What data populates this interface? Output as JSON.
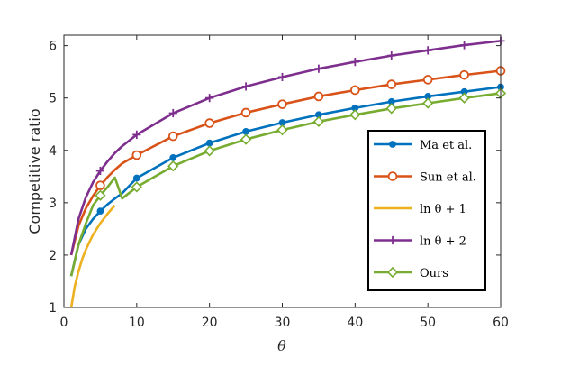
{
  "chart_data": {
    "type": "line",
    "title": "",
    "xlabel": "θ",
    "ylabel": "Competitive ratio",
    "xlim": [
      0,
      60
    ],
    "ylim": [
      1,
      6.2
    ],
    "xticks": [
      0,
      10,
      20,
      30,
      40,
      50,
      60
    ],
    "yticks": [
      1,
      2,
      3,
      4,
      5,
      6
    ],
    "grid": false,
    "legend_position": "right",
    "series": [
      {
        "name": "Ma et al.",
        "color": "#0072BD",
        "marker": "circle",
        "x": [
          1,
          2,
          3,
          4,
          5,
          6,
          7,
          8,
          10,
          15,
          20,
          25,
          30,
          35,
          40,
          45,
          50,
          55,
          60
        ],
        "y": [
          1.6,
          2.2,
          2.5,
          2.69,
          2.84,
          2.97,
          3.08,
          3.18,
          3.47,
          3.86,
          4.14,
          4.36,
          4.53,
          4.68,
          4.81,
          4.93,
          5.03,
          5.12,
          5.21
        ],
        "marker_x": [
          5,
          10,
          15,
          20,
          25,
          30,
          35,
          40,
          45,
          50,
          55,
          60
        ],
        "marker_y": [
          2.84,
          3.47,
          3.86,
          4.14,
          4.36,
          4.53,
          4.68,
          4.81,
          4.93,
          5.03,
          5.12,
          5.21
        ]
      },
      {
        "name": "Sun et al.",
        "color": "#D95319",
        "marker": "open-circle",
        "x": [
          1,
          2,
          3,
          4,
          5,
          6,
          7,
          8,
          10,
          15,
          20,
          25,
          30,
          35,
          40,
          45,
          50,
          55,
          60
        ],
        "y": [
          2.0,
          2.56,
          2.89,
          3.13,
          3.33,
          3.49,
          3.63,
          3.75,
          3.91,
          4.27,
          4.52,
          4.72,
          4.88,
          5.03,
          5.15,
          5.26,
          5.35,
          5.44,
          5.52
        ],
        "marker_x": [
          5,
          10,
          15,
          20,
          25,
          30,
          35,
          40,
          45,
          50,
          55,
          60
        ],
        "marker_y": [
          3.33,
          3.91,
          4.27,
          4.52,
          4.72,
          4.88,
          5.03,
          5.15,
          5.26,
          5.35,
          5.44,
          5.52
        ]
      },
      {
        "name": "ln θ + 1",
        "color": "#EDB120",
        "marker": "none",
        "x": [
          1,
          1.5,
          2,
          2.5,
          3,
          3.5,
          4,
          4.5,
          5,
          5.5,
          6,
          6.5,
          7
        ],
        "y": [
          1.0,
          1.41,
          1.69,
          1.92,
          2.1,
          2.25,
          2.39,
          2.5,
          2.61,
          2.7,
          2.79,
          2.87,
          2.95
        ],
        "marker_x": [],
        "marker_y": []
      },
      {
        "name": "ln θ + 2",
        "color": "#7E2F8E",
        "marker": "plus",
        "x": [
          1,
          2,
          3,
          4,
          5,
          6,
          7,
          8,
          10,
          15,
          20,
          25,
          30,
          35,
          40,
          45,
          50,
          55,
          60
        ],
        "y": [
          2.0,
          2.69,
          3.1,
          3.39,
          3.61,
          3.79,
          3.95,
          4.08,
          4.3,
          4.71,
          5.0,
          5.22,
          5.4,
          5.56,
          5.69,
          5.81,
          5.91,
          6.01,
          6.09
        ],
        "marker_x": [
          5,
          10,
          15,
          20,
          25,
          30,
          35,
          40,
          45,
          50,
          55,
          60
        ],
        "marker_y": [
          3.61,
          4.3,
          4.71,
          5.0,
          5.22,
          5.4,
          5.56,
          5.69,
          5.81,
          5.91,
          6.01,
          6.09
        ]
      },
      {
        "name": "Ours",
        "color": "#77AC30",
        "marker": "diamond",
        "x": [
          1,
          2,
          3,
          4,
          5,
          6,
          7,
          8,
          10,
          15,
          20,
          25,
          30,
          35,
          40,
          45,
          50,
          55,
          60
        ],
        "y": [
          1.6,
          2.2,
          2.6,
          2.95,
          3.14,
          3.3,
          3.48,
          3.08,
          3.3,
          3.7,
          3.99,
          4.21,
          4.39,
          4.55,
          4.68,
          4.8,
          4.9,
          5.0,
          5.09
        ],
        "marker_x": [
          5,
          10,
          15,
          20,
          25,
          30,
          35,
          40,
          45,
          50,
          55,
          60
        ],
        "marker_y": [
          3.14,
          3.3,
          3.7,
          3.99,
          4.21,
          4.39,
          4.55,
          4.68,
          4.8,
          4.9,
          5.0,
          5.09
        ]
      }
    ]
  }
}
